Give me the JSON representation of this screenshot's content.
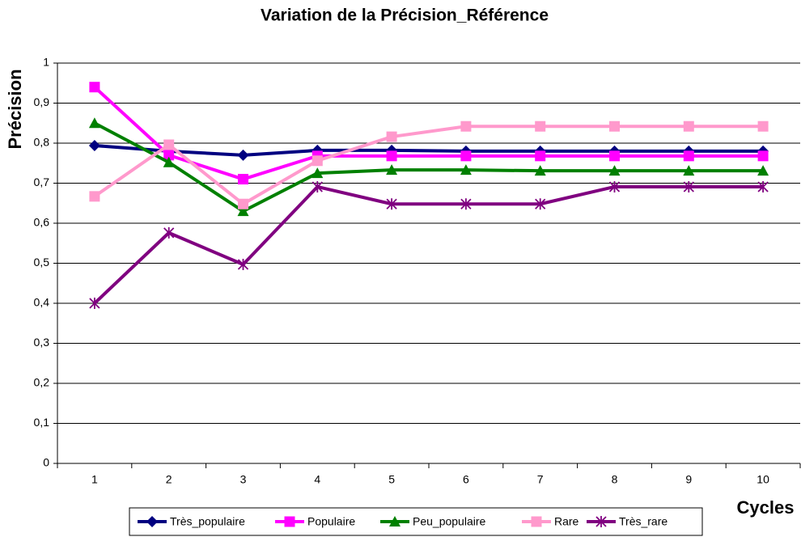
{
  "chart_data": {
    "type": "line",
    "title": "Variation de la Précision_Référence",
    "x_label": "Cycles",
    "y_label": "Précision",
    "categories": [
      "1",
      "2",
      "3",
      "4",
      "5",
      "6",
      "7",
      "8",
      "9",
      "10"
    ],
    "ylim": [
      0,
      1
    ],
    "yticks": [
      0,
      {
        "value": 0.1,
        "label": "0,1"
      },
      {
        "value": 0.2,
        "label": "0,2"
      },
      {
        "value": 0.3,
        "label": "0,3"
      },
      {
        "value": 0.4,
        "label": "0,4"
      },
      {
        "value": 0.5,
        "label": "0,5"
      },
      {
        "value": 0.6,
        "label": "0,6"
      },
      {
        "value": 0.7,
        "label": "0,7"
      },
      {
        "value": 0.8,
        "label": "0,8"
      },
      {
        "value": 0.9,
        "label": "0,9"
      },
      1
    ],
    "grid": true,
    "legend": "bottom",
    "series": [
      {
        "name": "Très_populaire",
        "color": "#000080",
        "marker": "diamond",
        "values": [
          0.794,
          0.78,
          0.77,
          0.782,
          0.782,
          0.78,
          0.78,
          0.78,
          0.78,
          0.78
        ]
      },
      {
        "name": "Populaire",
        "color": "#ff00ff",
        "marker": "square",
        "values": [
          0.94,
          0.77,
          0.71,
          0.768,
          0.768,
          0.768,
          0.768,
          0.768,
          0.768,
          0.768
        ]
      },
      {
        "name": "Peu_populaire",
        "color": "#008000",
        "marker": "triangle",
        "values": [
          0.85,
          0.752,
          0.63,
          0.725,
          0.733,
          0.733,
          0.731,
          0.731,
          0.731,
          0.731
        ]
      },
      {
        "name": "Rare",
        "color": "#ff99cc",
        "marker": "square",
        "values": [
          0.667,
          0.796,
          0.648,
          0.756,
          0.816,
          0.842,
          0.842,
          0.842,
          0.842,
          0.842
        ]
      },
      {
        "name": "Très_rare",
        "color": "#800080",
        "marker": "asterisk",
        "values": [
          0.4,
          0.576,
          0.497,
          0.691,
          0.648,
          0.648,
          0.648,
          0.691,
          0.691,
          0.691
        ]
      }
    ]
  }
}
